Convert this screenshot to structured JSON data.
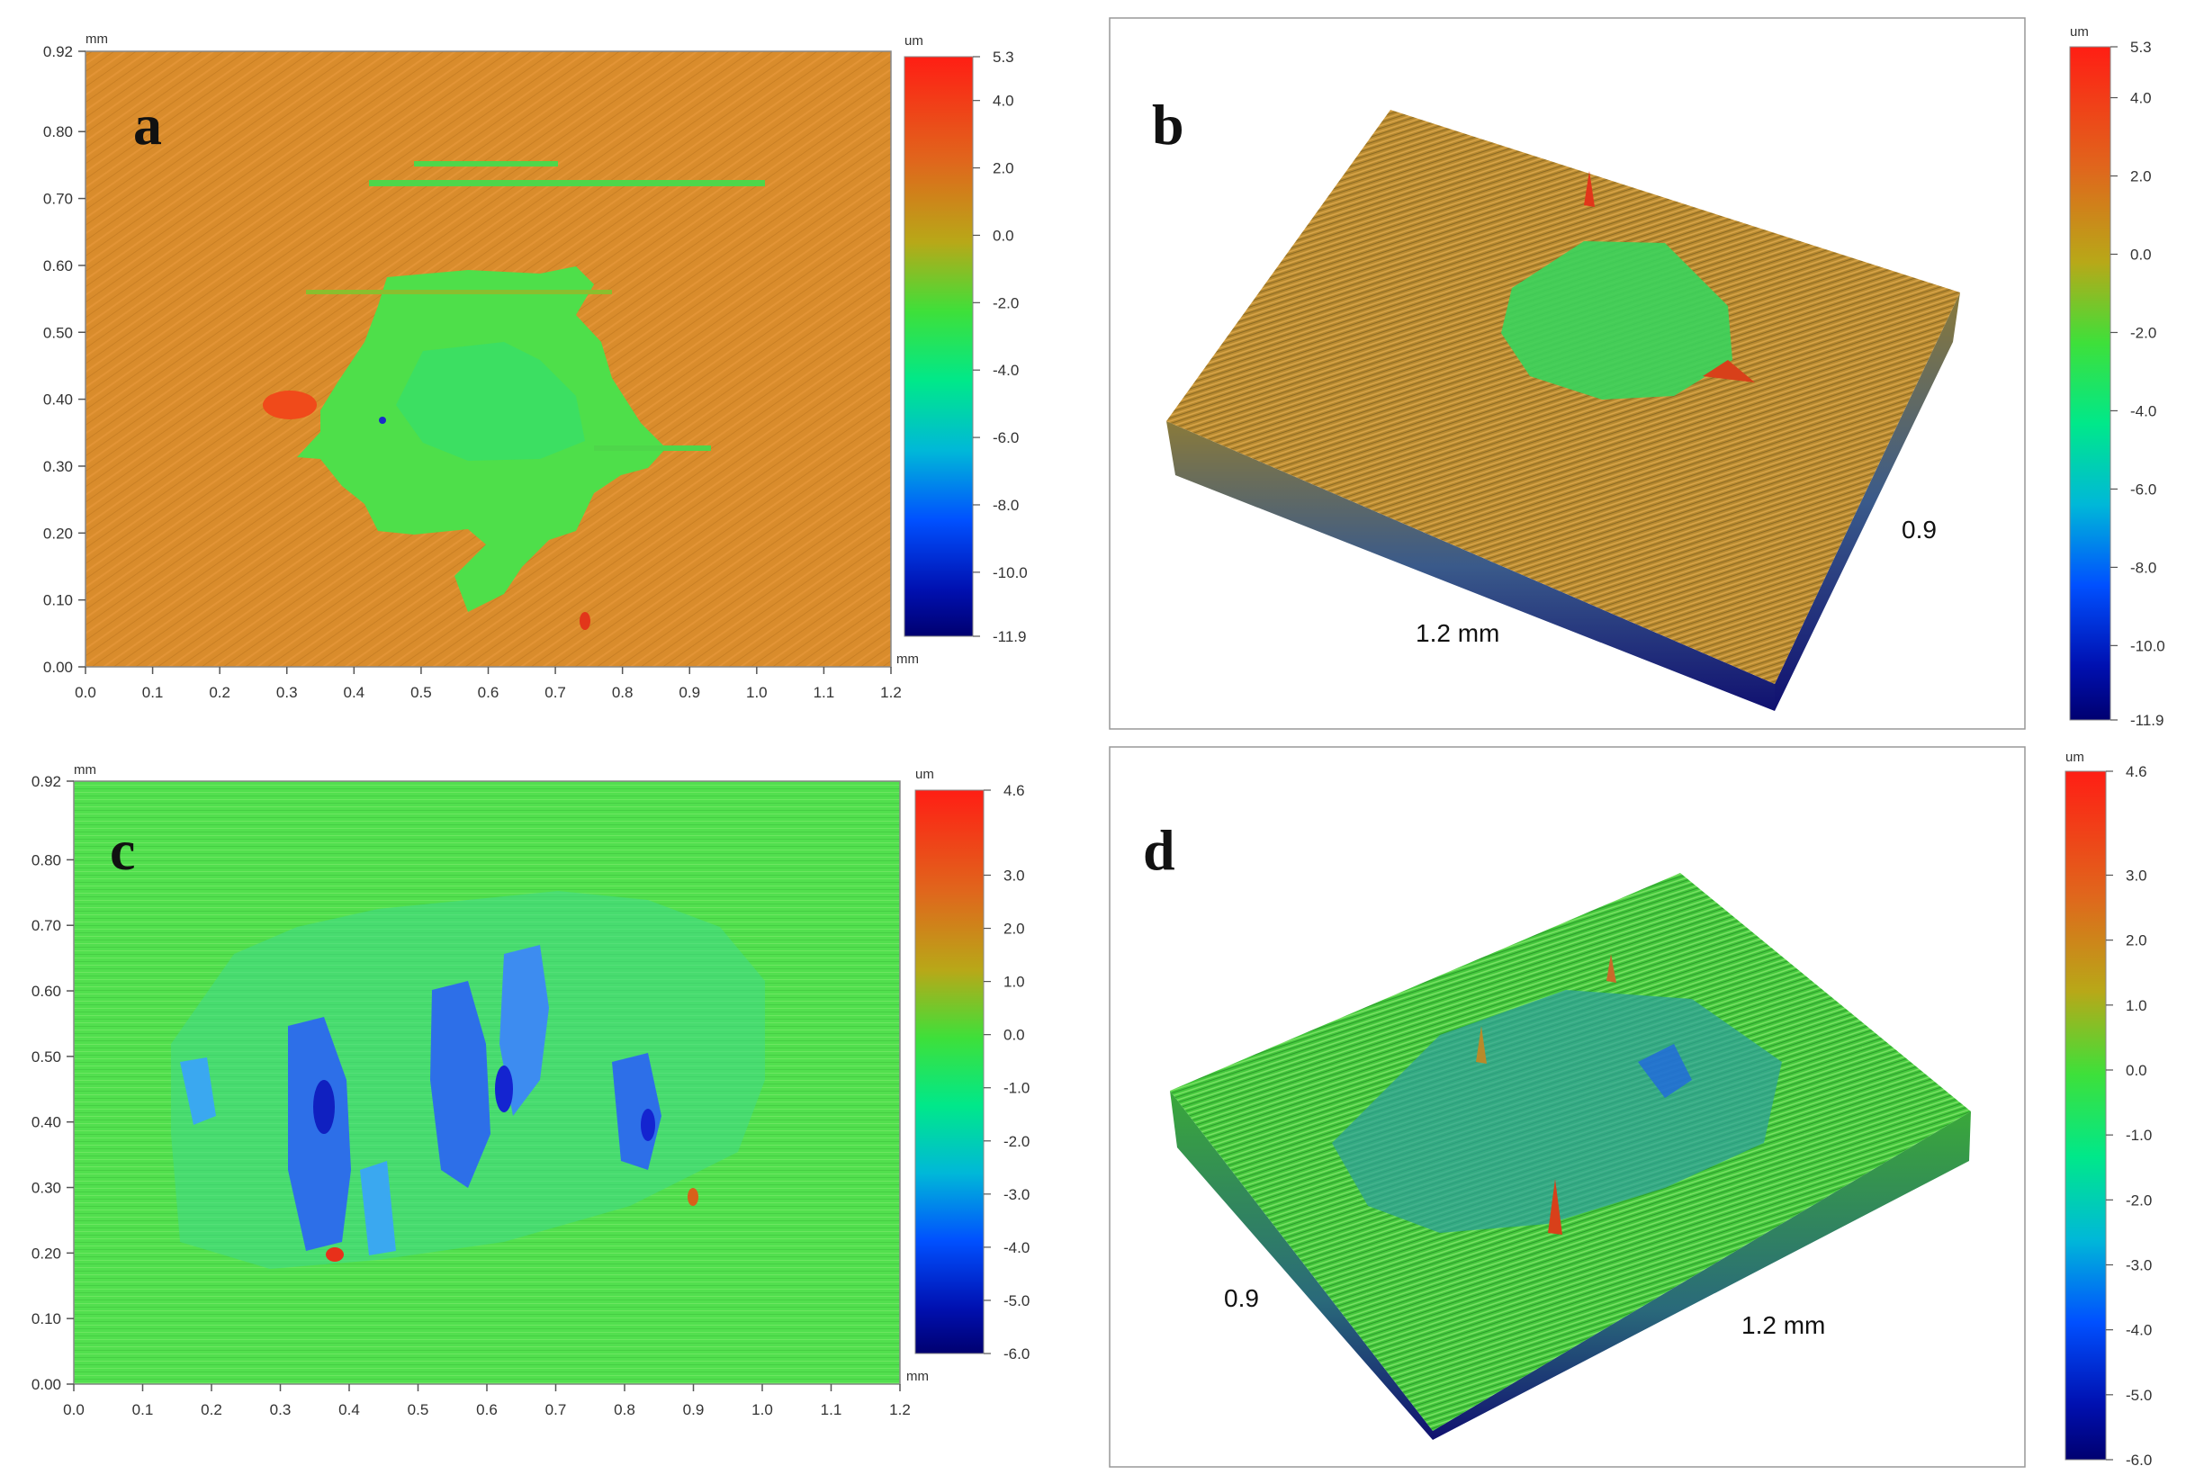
{
  "colors": {
    "scale": [
      "#000080",
      "#0030ff",
      "#00c8c8",
      "#00e864",
      "#22dc32",
      "#b4c414",
      "#e88a14",
      "#ff1e14"
    ],
    "orange_surface": "#d88a2a",
    "green_surface": "#4fdc4c",
    "frame": "#888888"
  },
  "panels": {
    "a": {
      "letter": "a",
      "axis_unit_x": "mm",
      "axis_unit_y": "mm",
      "x_ticks": [
        "0.0",
        "0.1",
        "0.2",
        "0.3",
        "0.4",
        "0.5",
        "0.6",
        "0.7",
        "0.8",
        "0.9",
        "1.0",
        "1.1",
        "1.2"
      ],
      "y_ticks": [
        "0.00",
        "0.10",
        "0.20",
        "0.30",
        "0.40",
        "0.50",
        "0.60",
        "0.70",
        "0.80",
        "0.92"
      ],
      "colorbar_unit": "um",
      "colorbar_ticks": [
        "5.3",
        "4.0",
        "2.0",
        "0.0",
        "-2.0",
        "-4.0",
        "-6.0",
        "-8.0",
        "-10.0",
        "-11.9"
      ]
    },
    "b": {
      "letter": "b",
      "dim_length": "1.2 mm",
      "dim_width": "0.9",
      "colorbar_unit": "um",
      "colorbar_ticks": [
        "5.3",
        "4.0",
        "2.0",
        "0.0",
        "-2.0",
        "-4.0",
        "-6.0",
        "-8.0",
        "-10.0",
        "-11.9"
      ]
    },
    "c": {
      "letter": "c",
      "axis_unit_x": "mm",
      "axis_unit_y": "mm",
      "x_ticks": [
        "0.0",
        "0.1",
        "0.2",
        "0.3",
        "0.4",
        "0.5",
        "0.6",
        "0.7",
        "0.8",
        "0.9",
        "1.0",
        "1.1",
        "1.2"
      ],
      "y_ticks": [
        "0.00",
        "0.10",
        "0.20",
        "0.30",
        "0.40",
        "0.50",
        "0.60",
        "0.70",
        "0.80",
        "0.92"
      ],
      "colorbar_unit": "um",
      "colorbar_ticks": [
        "4.6",
        "3.0",
        "2.0",
        "1.0",
        "0.0",
        "-1.0",
        "-2.0",
        "-3.0",
        "-4.0",
        "-5.0",
        "-6.0"
      ]
    },
    "d": {
      "letter": "d",
      "dim_length": "1.2 mm",
      "dim_width": "0.9",
      "colorbar_unit": "um",
      "colorbar_ticks": [
        "4.6",
        "3.0",
        "2.0",
        "1.0",
        "0.0",
        "-1.0",
        "-2.0",
        "-3.0",
        "-4.0",
        "-5.0",
        "-6.0"
      ]
    }
  },
  "chart_data": [
    {
      "type": "heatmap",
      "panel": "a",
      "x_unit": "mm",
      "y_unit": "mm",
      "z_unit": "um",
      "xlim": [
        0,
        1.2
      ],
      "ylim": [
        0,
        0.92
      ],
      "zlim": [
        -11.9,
        5.3
      ],
      "x_ticks": [
        0,
        0.1,
        0.2,
        0.3,
        0.4,
        0.5,
        0.6,
        0.7,
        0.8,
        0.9,
        1.0,
        1.1,
        1.2
      ],
      "y_ticks": [
        0,
        0.1,
        0.2,
        0.3,
        0.4,
        0.5,
        0.6,
        0.7,
        0.8,
        0.92
      ],
      "z_ticks": [
        5.3,
        4.0,
        2.0,
        0.0,
        -2.0,
        -4.0,
        -6.0,
        -8.0,
        -10.0,
        -11.9
      ],
      "grid": false
    },
    {
      "type": "heatmap",
      "panel": "b",
      "view": "3d-surface",
      "z_unit": "um",
      "zlim": [
        -11.9,
        5.3
      ],
      "z_ticks": [
        5.3,
        4.0,
        2.0,
        0.0,
        -2.0,
        -4.0,
        -6.0,
        -8.0,
        -10.0,
        -11.9
      ]
    },
    {
      "type": "heatmap",
      "panel": "c",
      "x_unit": "mm",
      "y_unit": "mm",
      "z_unit": "um",
      "xlim": [
        0,
        1.2
      ],
      "ylim": [
        0,
        0.92
      ],
      "zlim": [
        -6.0,
        4.6
      ],
      "x_ticks": [
        0,
        0.1,
        0.2,
        0.3,
        0.4,
        0.5,
        0.6,
        0.7,
        0.8,
        0.9,
        1.0,
        1.1,
        1.2
      ],
      "y_ticks": [
        0,
        0.1,
        0.2,
        0.3,
        0.4,
        0.5,
        0.6,
        0.7,
        0.8,
        0.92
      ],
      "z_ticks": [
        4.6,
        3.0,
        2.0,
        1.0,
        0.0,
        -1.0,
        -2.0,
        -3.0,
        -4.0,
        -5.0,
        -6.0
      ],
      "grid": false
    },
    {
      "type": "heatmap",
      "panel": "d",
      "view": "3d-surface",
      "z_unit": "um",
      "zlim": [
        -6.0,
        4.6
      ],
      "z_ticks": [
        4.6,
        3.0,
        2.0,
        1.0,
        0.0,
        -1.0,
        -2.0,
        -3.0,
        -4.0,
        -5.0,
        -6.0
      ]
    }
  ]
}
